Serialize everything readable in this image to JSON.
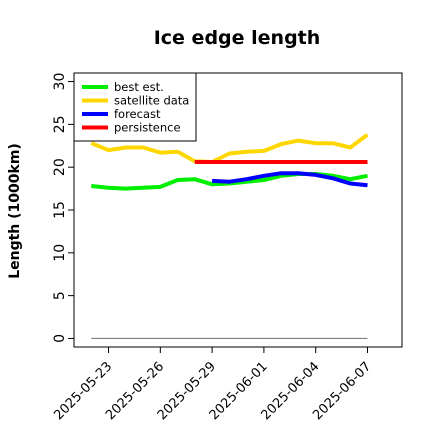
{
  "chart_data": {
    "type": "line",
    "title": "Ice edge length",
    "xlabel": "",
    "ylabel": "Length (1000km)",
    "ylim": [
      -1,
      31
    ],
    "xlim": [
      "2025-05-21",
      "2025-06-09"
    ],
    "yticks": [
      0,
      5,
      10,
      15,
      20,
      25,
      30
    ],
    "xticks": [
      "2025-05-23",
      "2025-05-26",
      "2025-05-29",
      "2025-06-01",
      "2025-06-04",
      "2025-06-07"
    ],
    "highlight_tick": "2025-05-29",
    "highlight_color": "#228b22",
    "grid": false,
    "legend_position": "top-left",
    "series": [
      {
        "name": "best est.",
        "color": "#00ee00",
        "x": [
          "2025-05-22",
          "2025-05-23",
          "2025-05-24",
          "2025-05-25",
          "2025-05-26",
          "2025-05-27",
          "2025-05-28",
          "2025-05-29",
          "2025-05-30",
          "2025-05-31",
          "2025-06-01",
          "2025-06-02",
          "2025-06-03",
          "2025-06-04",
          "2025-06-05",
          "2025-06-06",
          "2025-06-07"
        ],
        "y": [
          17.8,
          17.6,
          17.5,
          17.6,
          17.7,
          18.5,
          18.6,
          18.0,
          18.1,
          18.3,
          18.5,
          19.0,
          19.2,
          19.2,
          19.0,
          18.6,
          19.0
        ]
      },
      {
        "name": "satellite data",
        "color": "#ffd700",
        "x": [
          "2025-05-22",
          "2025-05-23",
          "2025-05-24",
          "2025-05-25",
          "2025-05-26",
          "2025-05-27",
          "2025-05-28",
          "2025-05-29",
          "2025-05-30",
          "2025-05-31",
          "2025-06-01",
          "2025-06-02",
          "2025-06-03",
          "2025-06-04",
          "2025-06-05",
          "2025-06-06",
          "2025-06-07"
        ],
        "y": [
          22.8,
          22.0,
          22.3,
          22.3,
          21.7,
          21.8,
          20.7,
          20.6,
          21.6,
          21.8,
          21.9,
          22.7,
          23.1,
          22.8,
          22.8,
          22.3,
          23.8
        ]
      },
      {
        "name": "forecast",
        "color": "#0000ff",
        "x": [
          "2025-05-29",
          "2025-05-30",
          "2025-05-31",
          "2025-06-01",
          "2025-06-02",
          "2025-06-03",
          "2025-06-04",
          "2025-06-05",
          "2025-06-06",
          "2025-06-07"
        ],
        "y": [
          18.4,
          18.3,
          18.6,
          19.0,
          19.3,
          19.3,
          19.1,
          18.7,
          18.1,
          17.9
        ]
      },
      {
        "name": "persistence",
        "color": "#ff0000",
        "x": [
          "2025-05-28",
          "2025-06-07"
        ],
        "y": [
          20.6,
          20.6
        ]
      }
    ],
    "reference_line": {
      "y": 0,
      "color": "#808080"
    }
  }
}
